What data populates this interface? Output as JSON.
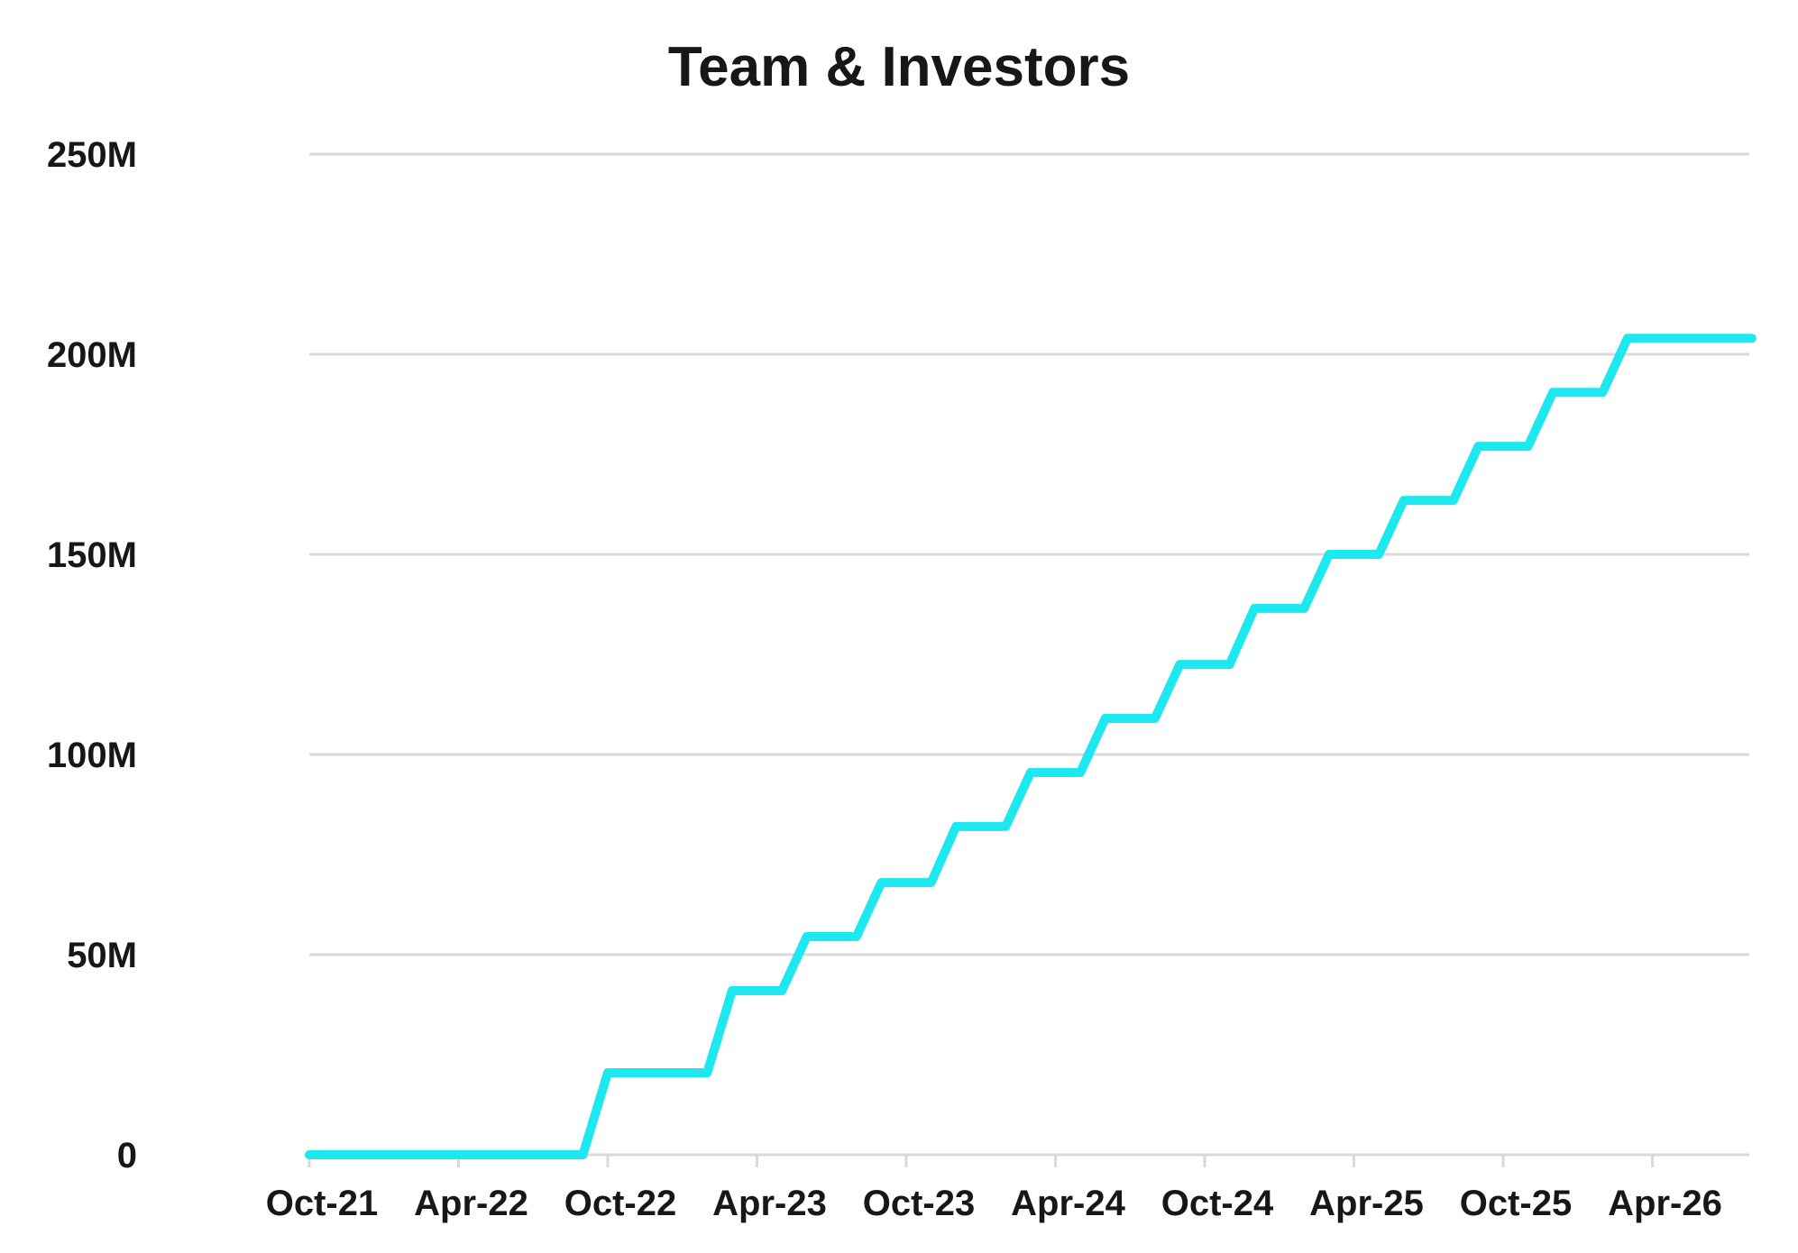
{
  "chart_data": {
    "type": "line",
    "title": "Team & Investors",
    "xlabel": "",
    "ylabel": "",
    "x_tick_labels": [
      "Oct-21",
      "Apr-22",
      "Oct-22",
      "Apr-23",
      "Oct-23",
      "Apr-24",
      "Oct-24",
      "Apr-25",
      "Oct-25",
      "Apr-26"
    ],
    "y_tick_labels": [
      "0",
      "50M",
      "100M",
      "150M",
      "200M",
      "250M"
    ],
    "y_tick_values": [
      0,
      50000000,
      100000000,
      150000000,
      200000000,
      250000000
    ],
    "xlim": [
      "2021-10",
      "2026-04"
    ],
    "ylim": [
      0,
      250000000
    ],
    "grid": true,
    "line_shape": "step",
    "colors": {
      "series": "#1ee8ef",
      "grid": "#d9d9d9",
      "text": "#171717"
    },
    "series": [
      {
        "name": "",
        "points": [
          {
            "x": "2021-10",
            "y": 0
          },
          {
            "x": "2022-09",
            "y": 0
          },
          {
            "x": "2022-10",
            "y": 20500000
          },
          {
            "x": "2023-02",
            "y": 20500000
          },
          {
            "x": "2023-03",
            "y": 41000000
          },
          {
            "x": "2023-05",
            "y": 41000000
          },
          {
            "x": "2023-06",
            "y": 54500000
          },
          {
            "x": "2023-08",
            "y": 54500000
          },
          {
            "x": "2023-09",
            "y": 68000000
          },
          {
            "x": "2023-11",
            "y": 68000000
          },
          {
            "x": "2023-12",
            "y": 82000000
          },
          {
            "x": "2024-02",
            "y": 82000000
          },
          {
            "x": "2024-03",
            "y": 95500000
          },
          {
            "x": "2024-05",
            "y": 95500000
          },
          {
            "x": "2024-06",
            "y": 109000000
          },
          {
            "x": "2024-08",
            "y": 109000000
          },
          {
            "x": "2024-09",
            "y": 122500000
          },
          {
            "x": "2024-11",
            "y": 122500000
          },
          {
            "x": "2024-12",
            "y": 136500000
          },
          {
            "x": "2025-02",
            "y": 136500000
          },
          {
            "x": "2025-03",
            "y": 150000000
          },
          {
            "x": "2025-05",
            "y": 150000000
          },
          {
            "x": "2025-06",
            "y": 163500000
          },
          {
            "x": "2025-08",
            "y": 163500000
          },
          {
            "x": "2025-09",
            "y": 177000000
          },
          {
            "x": "2025-11",
            "y": 177000000
          },
          {
            "x": "2025-12",
            "y": 190500000
          },
          {
            "x": "2026-02",
            "y": 190500000
          },
          {
            "x": "2026-03",
            "y": 204000000
          },
          {
            "x": "2026-08",
            "y": 204000000
          }
        ]
      }
    ]
  }
}
